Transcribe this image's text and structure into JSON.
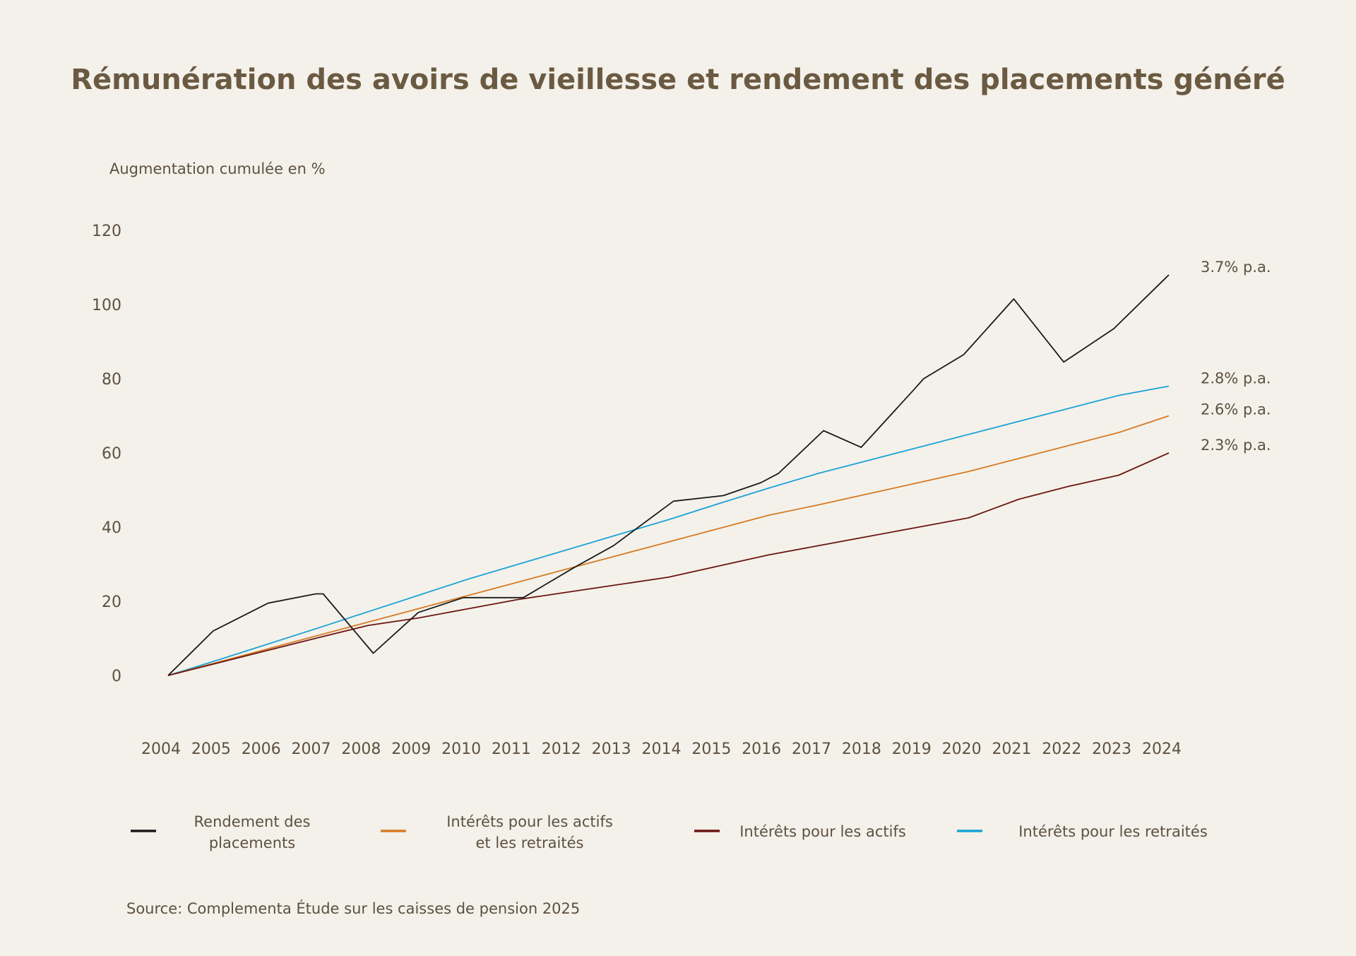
{
  "chart_data": {
    "type": "line",
    "title": "Rémunération des avoirs de vieillesse et rendement des placements généré",
    "ylabel": "Augmentation cumulée en %",
    "xlabel": "",
    "ylim": [
      0,
      120
    ],
    "y_ticks": [
      0,
      20,
      40,
      60,
      80,
      100,
      120
    ],
    "x": [
      2004,
      2005,
      2006,
      2007,
      2008,
      2009,
      2010,
      2011,
      2012,
      2013,
      2014,
      2015,
      2016,
      2017,
      2018,
      2019,
      2020,
      2021,
      2022,
      2023,
      2024
    ],
    "series": [
      {
        "name": "Rendement des placements",
        "legend_lines": [
          "Rendement des",
          "placements"
        ],
        "color": "#1a1a1a",
        "end_label": "3.7% p.a.",
        "points": [
          [
            2004,
            0
          ],
          [
            2004.9,
            12
          ],
          [
            2006,
            19.5
          ],
          [
            2006.95,
            22
          ],
          [
            2007.1,
            22
          ],
          [
            2008.1,
            6
          ],
          [
            2009,
            17
          ],
          [
            2009.9,
            21
          ],
          [
            2011.1,
            21
          ],
          [
            2012.1,
            29
          ],
          [
            2012.9,
            35
          ],
          [
            2014.1,
            47
          ],
          [
            2015.1,
            48.5
          ],
          [
            2015.85,
            52
          ],
          [
            2016.2,
            54.5
          ],
          [
            2017.1,
            66
          ],
          [
            2017.85,
            61.5
          ],
          [
            2018.9,
            77
          ],
          [
            2019.1,
            80
          ],
          [
            2019.9,
            86.5
          ],
          [
            2020.9,
            101.5
          ],
          [
            2021.9,
            84.5
          ],
          [
            2022.9,
            93.5
          ],
          [
            2024,
            108
          ]
        ],
        "values": [
          0,
          12,
          19.5,
          22,
          6,
          17,
          21,
          21,
          29,
          35,
          47,
          48.5,
          53,
          66,
          61.5,
          80,
          86.5,
          101.5,
          84.5,
          93.5,
          108
        ]
      },
      {
        "name": "Intérêts pour les actifs et les retraités",
        "legend_lines": [
          "Intérêts pour les actifs",
          "et les retraités"
        ],
        "color": "#d67b25",
        "end_label": "2.6% p.a.",
        "points": [
          [
            2004,
            0
          ],
          [
            2005,
            3.6
          ],
          [
            2006,
            7.2
          ],
          [
            2007,
            10.8
          ],
          [
            2008,
            14.4
          ],
          [
            2009,
            18
          ],
          [
            2010,
            21.6
          ],
          [
            2011,
            25.2
          ],
          [
            2012,
            28.8
          ],
          [
            2013,
            32.4
          ],
          [
            2014,
            36
          ],
          [
            2015,
            39.6
          ],
          [
            2016,
            43.2
          ],
          [
            2017,
            46
          ],
          [
            2018,
            49
          ],
          [
            2019,
            52
          ],
          [
            2020,
            55
          ],
          [
            2021,
            58.5
          ],
          [
            2022,
            62
          ],
          [
            2023,
            65.5
          ],
          [
            2024,
            70
          ]
        ],
        "values": [
          0,
          3.6,
          7.2,
          10.8,
          14.4,
          18,
          21.6,
          25.2,
          28.8,
          32.4,
          36,
          39.6,
          43.2,
          46,
          49,
          52,
          55,
          58.5,
          62,
          65.5,
          70
        ]
      },
      {
        "name": "Intérêts pour les actifs",
        "legend_lines": [
          "Intérêts pour les actifs"
        ],
        "color": "#6b1612",
        "end_label": "2.3% p.a.",
        "points": [
          [
            2004,
            0
          ],
          [
            2005,
            3.4
          ],
          [
            2006,
            6.8
          ],
          [
            2007,
            10.2
          ],
          [
            2008,
            13.5
          ],
          [
            2009,
            15.5
          ],
          [
            2010,
            18
          ],
          [
            2011,
            20.5
          ],
          [
            2012,
            22.5
          ],
          [
            2013,
            24.5
          ],
          [
            2014,
            26.5
          ],
          [
            2015,
            29.5
          ],
          [
            2016,
            32.5
          ],
          [
            2017,
            35
          ],
          [
            2018,
            37.5
          ],
          [
            2019,
            40
          ],
          [
            2020,
            42.5
          ],
          [
            2021,
            47.5
          ],
          [
            2022,
            51
          ],
          [
            2023,
            54
          ],
          [
            2024,
            60
          ]
        ],
        "values": [
          0,
          3.4,
          6.8,
          10.2,
          13.5,
          15.5,
          18,
          20.5,
          22.5,
          24.5,
          26.5,
          29.5,
          32.5,
          35,
          37.5,
          40,
          42.5,
          47.5,
          51,
          54,
          60
        ]
      },
      {
        "name": "Intérêts pour les retraités",
        "legend_lines": [
          "Intérêts pour les retraités"
        ],
        "color": "#1ba3d6",
        "end_label": "2.8% p.a.",
        "points": [
          [
            2004,
            0
          ],
          [
            2005,
            4.2
          ],
          [
            2006,
            8.5
          ],
          [
            2007,
            12.8
          ],
          [
            2008,
            17.2
          ],
          [
            2009,
            21.6
          ],
          [
            2010,
            26
          ],
          [
            2011,
            30
          ],
          [
            2012,
            34
          ],
          [
            2013,
            38
          ],
          [
            2014,
            42
          ],
          [
            2015,
            46.3
          ],
          [
            2016,
            50.5
          ],
          [
            2017,
            54.5
          ],
          [
            2018,
            58
          ],
          [
            2019,
            61.5
          ],
          [
            2020,
            65
          ],
          [
            2021,
            68.5
          ],
          [
            2022,
            72
          ],
          [
            2023,
            75.5
          ],
          [
            2024,
            78
          ]
        ],
        "values": [
          0,
          4.2,
          8.5,
          12.8,
          17.2,
          21.6,
          26,
          30,
          34,
          38,
          42,
          46.3,
          50.5,
          54.5,
          58,
          61.5,
          65,
          68.5,
          72,
          75.5,
          78
        ]
      }
    ],
    "source": "Source: Complementa Étude sur les caisses de pension 2025"
  }
}
